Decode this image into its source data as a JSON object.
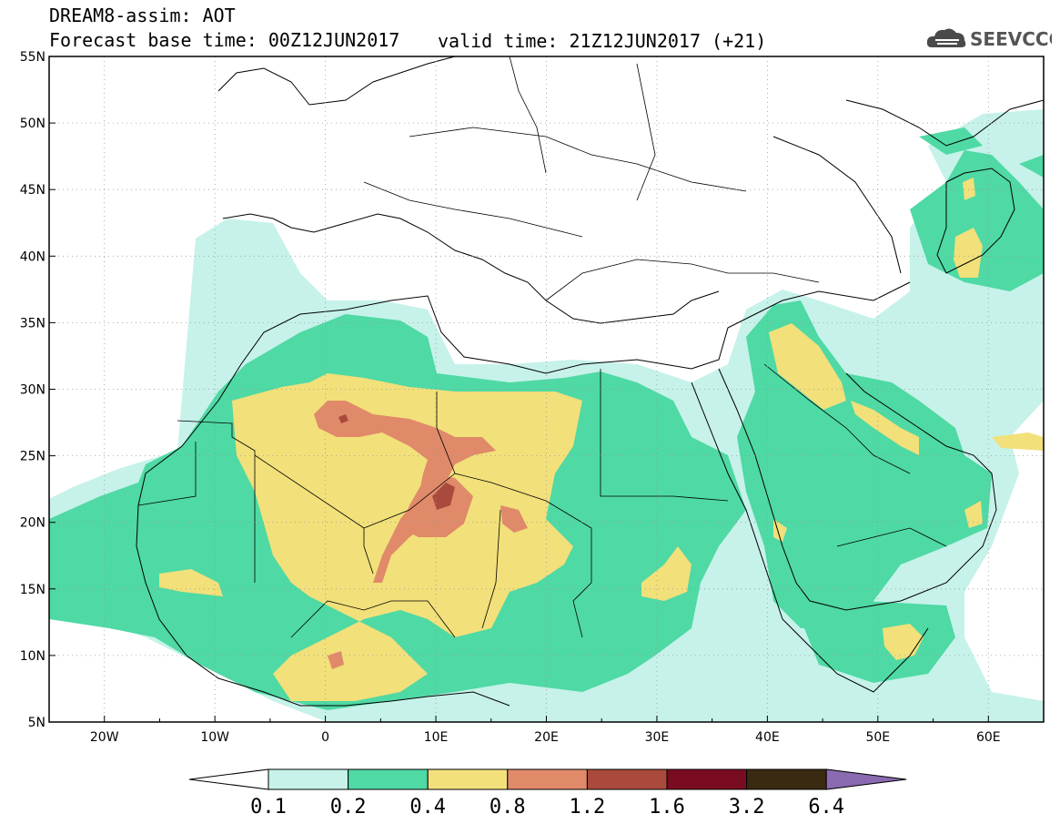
{
  "header": {
    "line1": "DREAM8-assim: AOT",
    "line2": "Forecast base time: 00Z12JUN2017",
    "valid": "valid time: 21Z12JUN2017 (+21)"
  },
  "logo": {
    "text": "SEEVCCC",
    "icon": "cloud-icon"
  },
  "axes": {
    "lat_labels": [
      "55N",
      "50N",
      "45N",
      "40N",
      "35N",
      "30N",
      "25N",
      "20N",
      "15N",
      "10N",
      "5N"
    ],
    "lon_labels": [
      "20W",
      "10W",
      "0",
      "10E",
      "20E",
      "30E",
      "40E",
      "50E",
      "60E"
    ],
    "lon_range": [
      -25,
      65
    ],
    "lat_range": [
      5,
      55
    ],
    "grid": true
  },
  "colorbar": {
    "labels": [
      "0.1",
      "0.2",
      "0.4",
      "0.8",
      "1.2",
      "1.6",
      "3.2",
      "6.4"
    ],
    "colors": [
      "#ffffff",
      "#c6f2ea",
      "#4fd9a4",
      "#f2e07a",
      "#e08a6a",
      "#a94a3c",
      "#7a0c22",
      "#3a2a12",
      "#8a6ab0"
    ]
  },
  "palette": {
    "c1": "#c6f2ea",
    "c2": "#4fd9a4",
    "c3": "#f2e07a",
    "c4": "#e08a6a",
    "c5": "#a94a3c"
  }
}
